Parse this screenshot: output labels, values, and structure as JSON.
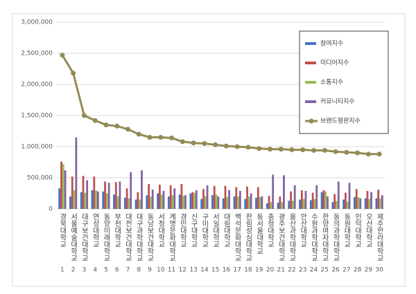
{
  "chart_data": {
    "type": "bar",
    "categories": [
      "경북대학교",
      "서울예술대학교",
      "대구보건대학교",
      "연성대학교",
      "동양미래대학교",
      "부천대학교",
      "대전보건대학교",
      "대구과학대학교",
      "동남보건대학교",
      "서정대학교",
      "계명문화대학교",
      "경민대학교",
      "신구대학교",
      "구미대학교",
      "서일대학교",
      "대림대학교",
      "백석문화대학교",
      "한림성심대학교",
      "동서울대학교",
      "충청대학교",
      "광주보건대학교",
      "울산과학대학교",
      "안산대학교",
      "수원과학대학교",
      "한양여자대학교",
      "동의과학대학교",
      "동원대학교",
      "인덕대학교",
      "오산대학교",
      "제주한라대학교"
    ],
    "rank_labels": [
      1,
      2,
      3,
      4,
      5,
      6,
      7,
      8,
      9,
      10,
      11,
      12,
      13,
      14,
      15,
      16,
      17,
      18,
      19,
      20,
      21,
      22,
      23,
      24,
      25,
      26,
      27,
      28,
      29,
      30
    ],
    "series": [
      {
        "name": "참여지수",
        "type": "bar",
        "color": "#4472c4",
        "values": [
          330000,
          200000,
          270000,
          300000,
          280000,
          230000,
          180000,
          150000,
          220000,
          250000,
          200000,
          230000,
          250000,
          160000,
          220000,
          170000,
          200000,
          160000,
          180000,
          90000,
          100000,
          130000,
          150000,
          140000,
          270000,
          110000,
          150000,
          190000,
          170000,
          170000
        ]
      },
      {
        "name": "미디어지수",
        "type": "bar",
        "color": "#c0504d",
        "values": [
          760000,
          520000,
          530000,
          520000,
          440000,
          430000,
          330000,
          270000,
          400000,
          390000,
          380000,
          400000,
          270000,
          320000,
          370000,
          370000,
          350000,
          360000,
          350000,
          210000,
          200000,
          280000,
          300000,
          260000,
          300000,
          240000,
          260000,
          320000,
          290000,
          310000
        ]
      },
      {
        "name": "소통지수",
        "type": "bar",
        "color": "#9bbb59",
        "values": [
          720000,
          300000,
          260000,
          300000,
          250000,
          200000,
          170000,
          150000,
          200000,
          230000,
          220000,
          210000,
          260000,
          200000,
          230000,
          190000,
          200000,
          200000,
          190000,
          110000,
          110000,
          130000,
          160000,
          160000,
          280000,
          130000,
          120000,
          190000,
          160000,
          170000
        ]
      },
      {
        "name": "커뮤니티지수",
        "type": "bar",
        "color": "#8064a2",
        "values": [
          620000,
          1150000,
          460000,
          280000,
          420000,
          440000,
          590000,
          620000,
          310000,
          290000,
          330000,
          220000,
          300000,
          380000,
          200000,
          300000,
          290000,
          250000,
          200000,
          550000,
          540000,
          380000,
          290000,
          380000,
          200000,
          440000,
          420000,
          170000,
          270000,
          220000
        ]
      },
      {
        "name": "브랜드평판지수",
        "type": "line",
        "color": "#948a54",
        "values": [
          2470000,
          2180000,
          1500000,
          1420000,
          1350000,
          1330000,
          1280000,
          1200000,
          1150000,
          1150000,
          1140000,
          1080000,
          1060000,
          1050000,
          1030000,
          1010000,
          1000000,
          990000,
          970000,
          960000,
          960000,
          950000,
          950000,
          940000,
          940000,
          920000,
          910000,
          900000,
          880000,
          880000
        ]
      }
    ],
    "ylim": [
      0,
      3000000
    ],
    "yticks": [
      0,
      {
        "value": 500000,
        "label": "500,000"
      },
      {
        "value": 1000000,
        "label": "1,000,000"
      },
      {
        "value": 1500000,
        "label": "1,500,000"
      },
      {
        "value": 2000000,
        "label": "2,000,000"
      },
      {
        "value": 2500000,
        "label": "2,500,000"
      },
      {
        "value": 3000000,
        "label": "3,000,000"
      }
    ],
    "legend": "top-right"
  }
}
